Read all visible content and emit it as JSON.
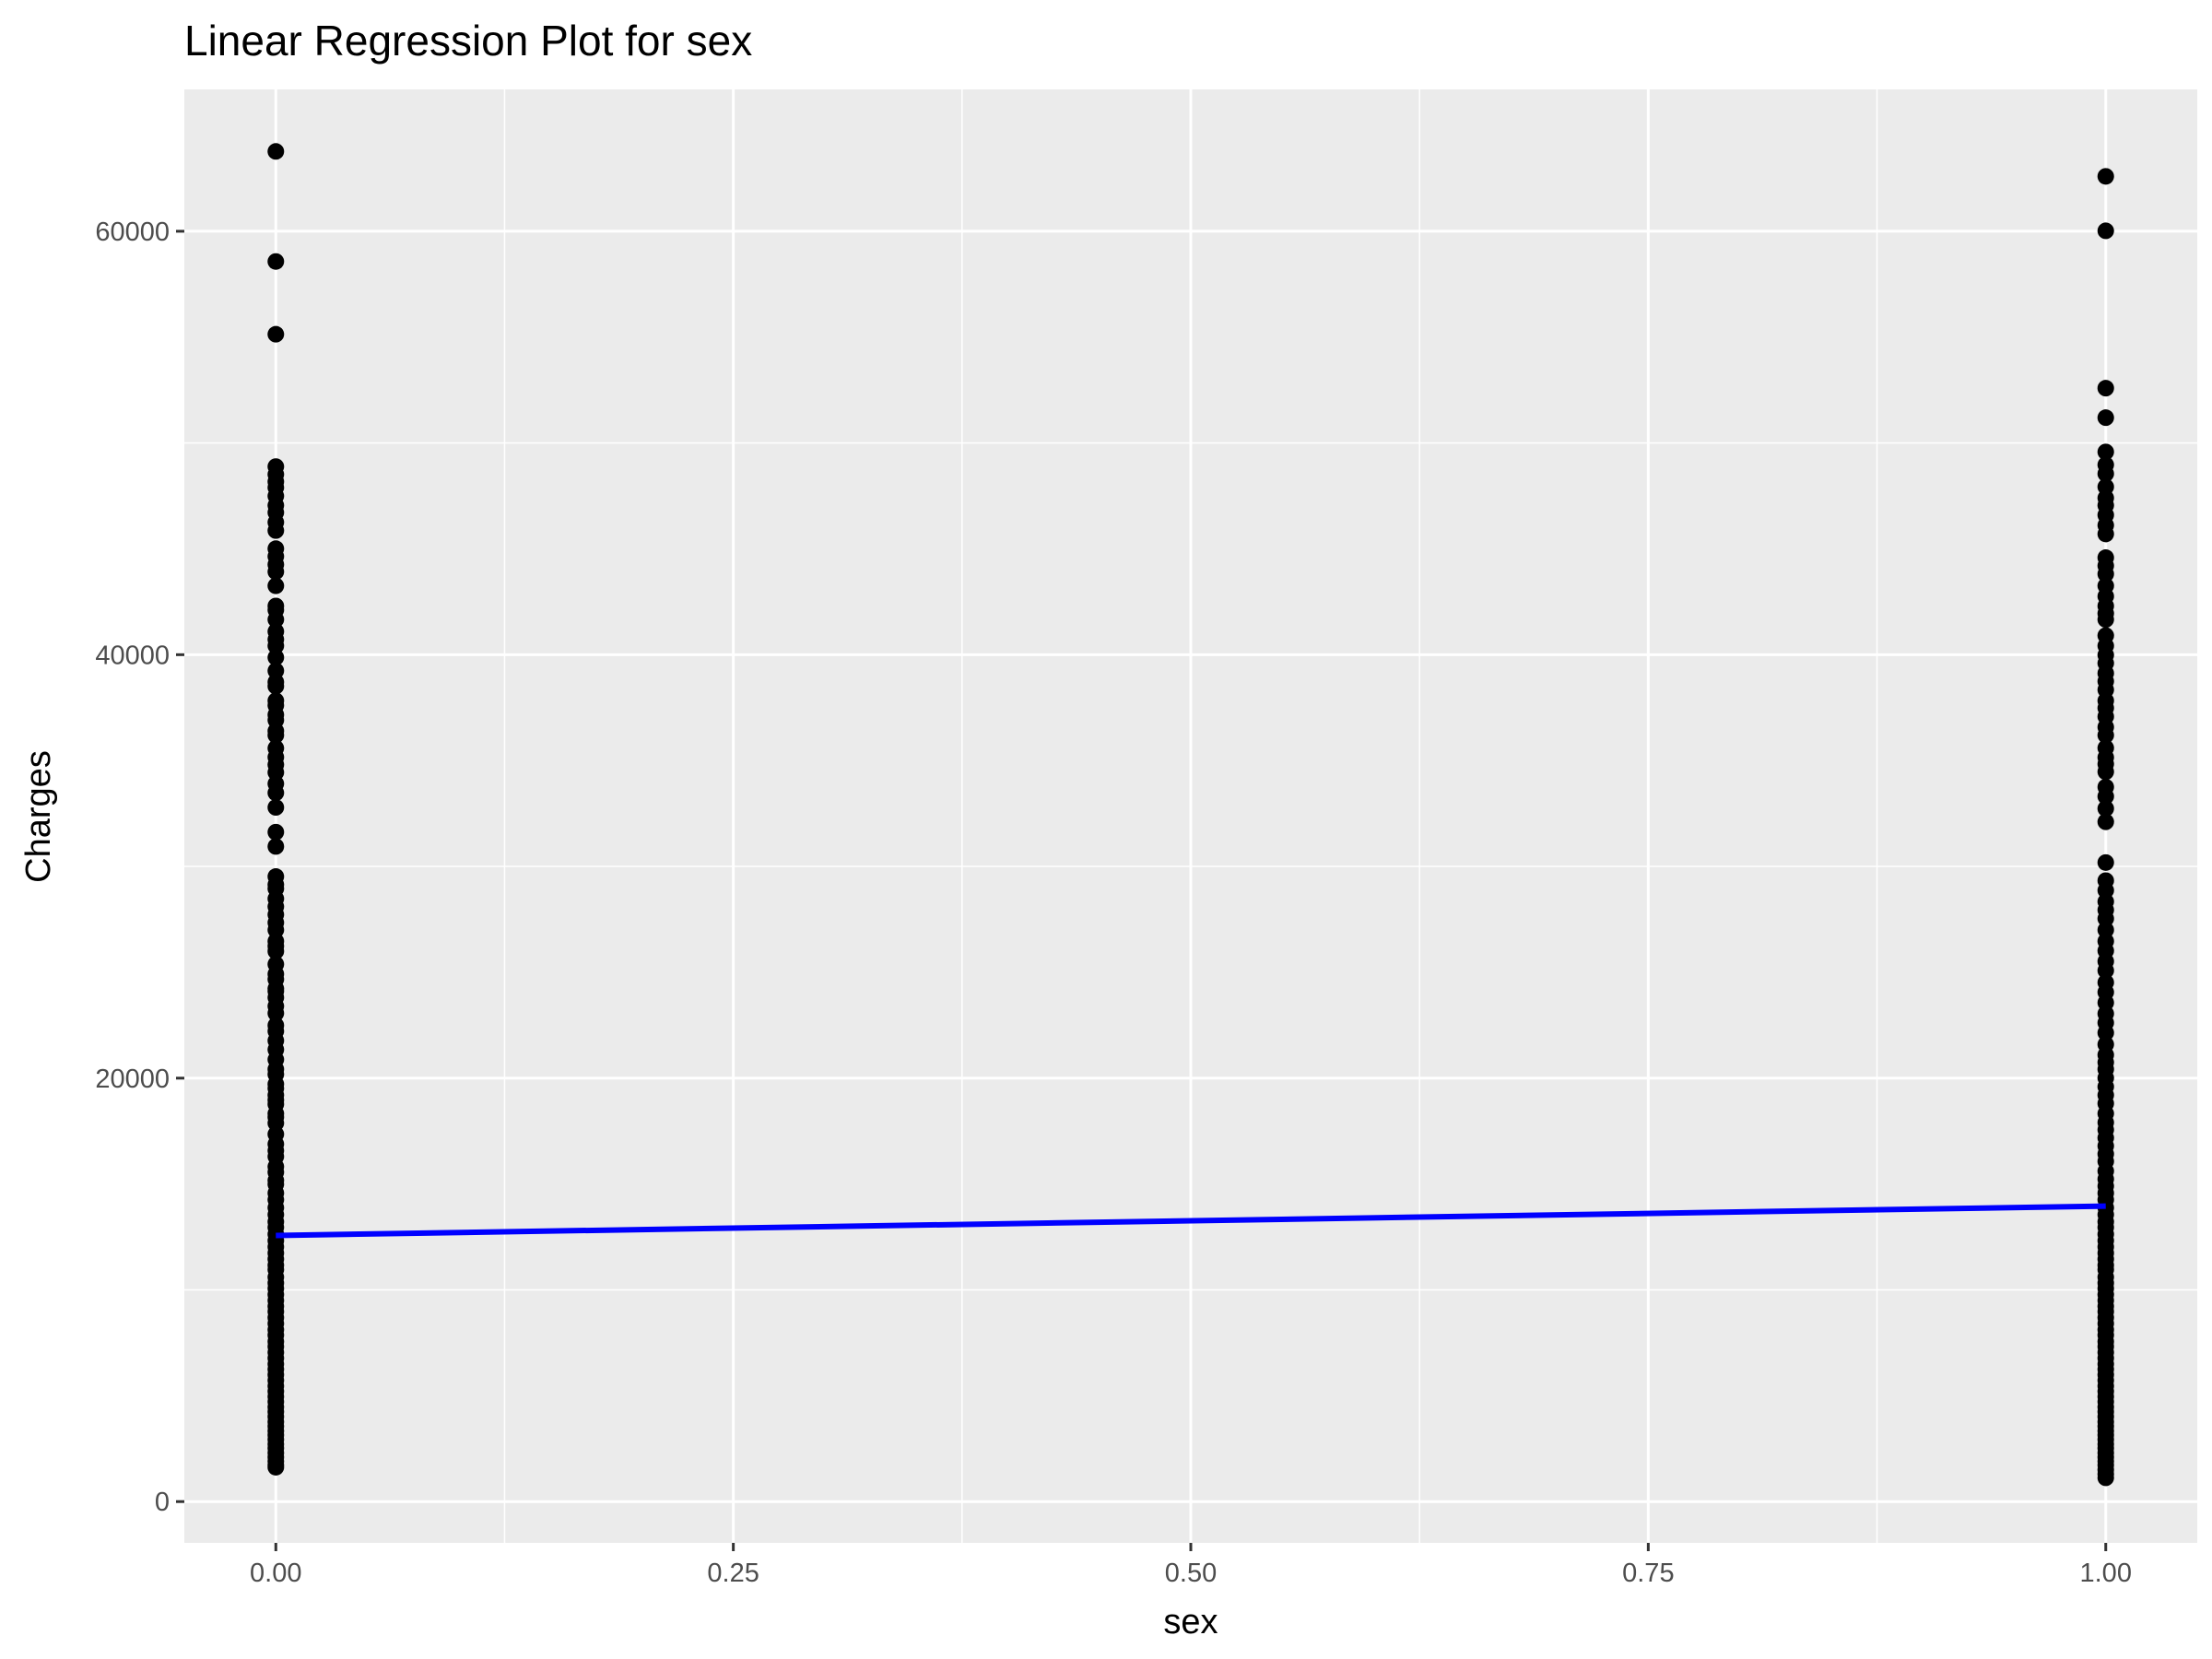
{
  "chart_data": {
    "type": "scatter",
    "title": "Linear Regression Plot for sex",
    "xlabel": "sex",
    "ylabel": "Charges",
    "xlim": [
      -0.05,
      1.05
    ],
    "ylim": [
      -1950,
      66700
    ],
    "x_ticks": [
      {
        "value": 0,
        "label": "0.00"
      },
      {
        "value": 0.25,
        "label": "0.25"
      },
      {
        "value": 0.5,
        "label": "0.50"
      },
      {
        "value": 0.75,
        "label": "0.75"
      },
      {
        "value": 1,
        "label": "1.00"
      }
    ],
    "y_ticks": [
      {
        "value": 0,
        "label": "0"
      },
      {
        "value": 20000,
        "label": "20000"
      },
      {
        "value": 40000,
        "label": "40000"
      },
      {
        "value": 60000,
        "label": "60000"
      }
    ],
    "grid": true,
    "background": "#ebebeb",
    "series": [
      {
        "x": 0,
        "values": [
          63770,
          58571,
          55135,
          48885,
          48517,
          48173,
          47896,
          47496,
          47055,
          46718,
          46255,
          45863,
          45008,
          44641,
          44260,
          43921,
          43254,
          42303,
          42112,
          41661,
          41097,
          40720,
          40419,
          39871,
          39241,
          38709,
          38511,
          37829,
          37607,
          37165,
          36910,
          36398,
          36197,
          35585,
          35160,
          34806,
          34439,
          33907,
          33475,
          32787,
          31620,
          30942,
          29523,
          29141,
          28950,
          28476,
          28101,
          27724,
          27346,
          27000,
          26467,
          26236,
          25992,
          25382,
          24915,
          24667,
          24227,
          24107,
          23807,
          23401,
          23065,
          22493,
          22218,
          21774,
          21348,
          20878,
          20420,
          20178,
          19719,
          19515,
          19199,
          18963,
          18767,
          18328,
          18157,
          17878,
          17352,
          16884,
          16577,
          16297,
          15820,
          15555,
          15170,
          14988,
          14571,
          14256,
          13880,
          13555,
          13217,
          12950,
          12629,
          12323,
          12029,
          11741,
          11455,
          11165,
          10959,
          10601,
          10325,
          10065,
          9778,
          9500,
          9225,
          8978,
          8688,
          8413,
          8118,
          7861,
          7563,
          7325,
          7046,
          6775,
          6500,
          6250,
          5989,
          5723,
          5458,
          5206,
          4956,
          4718,
          4463,
          4243,
          4011,
          3766,
          3556,
          3332,
          3142,
          2931,
          2713,
          2523,
          2302,
          2096,
          1906,
          1731,
          1621
        ]
      },
      {
        "x": 1,
        "values": [
          62593,
          60021,
          52590,
          51195,
          49578,
          48970,
          48549,
          47929,
          47403,
          47055,
          46599,
          46113,
          45702,
          44585,
          44202,
          43813,
          43254,
          42760,
          42303,
          41949,
          41661,
          40904,
          40419,
          39983,
          39597,
          39125,
          38746,
          38344,
          37829,
          37484,
          37079,
          36580,
          36197,
          35595,
          35147,
          34838,
          34472,
          33750,
          33307,
          32734,
          32108,
          30184,
          29330,
          28868,
          28340,
          27941,
          27533,
          27000,
          26467,
          26018,
          25517,
          25082,
          24520,
          24059,
          23563,
          23045,
          22614,
          22144,
          21595,
          21098,
          20745,
          20420,
          20009,
          19594,
          19199,
          18804,
          18328,
          17904,
          17560,
          17179,
          16796,
          16420,
          16069,
          15612,
          15230,
          14901,
          14571,
          14256,
          13880,
          13555,
          13217,
          12950,
          12629,
          12323,
          12029,
          11741,
          11455,
          11165,
          10959,
          10601,
          10325,
          10065,
          9778,
          9500,
          9225,
          8978,
          8688,
          8413,
          8118,
          7861,
          7563,
          7325,
          7046,
          6775,
          6500,
          6250,
          5989,
          5723,
          5458,
          5206,
          4956,
          4718,
          4463,
          4243,
          4011,
          3766,
          3556,
          3332,
          3142,
          2931,
          2713,
          2523,
          2302,
          2096,
          1906,
          1731,
          1500,
          1300,
          1122
        ]
      }
    ],
    "point_color": "#000000",
    "regression": {
      "x": [
        0,
        1
      ],
      "y": [
        12570,
        13957
      ],
      "color": "#0000ff"
    }
  }
}
